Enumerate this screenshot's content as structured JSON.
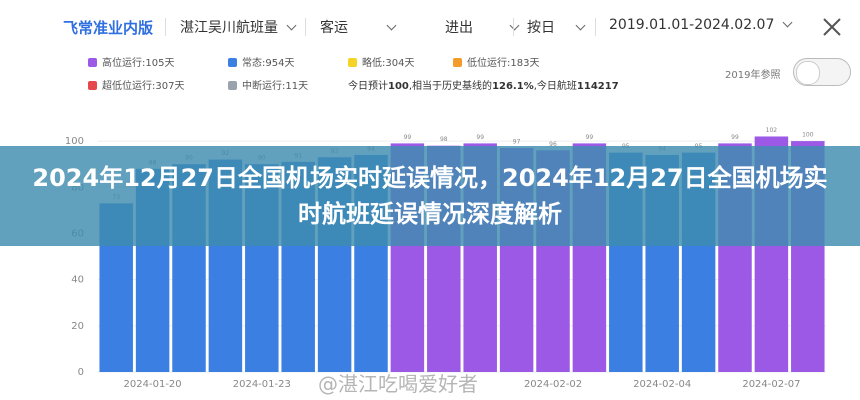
{
  "header": {
    "title": "飞常准业内版",
    "filters": [
      "湛江吴川航班量",
      "客运",
      "进出",
      "按日",
      "2019.01.01-2024.02.07"
    ]
  },
  "legend": [
    {
      "label": "高位运行:105天",
      "color": "#9b59e6"
    },
    {
      "label": "常态:954天",
      "color": "#3b7fe3"
    },
    {
      "label": "略低:304天",
      "color": "#f5d327"
    },
    {
      "label": "低位运行:183天",
      "color": "#f39b2b"
    },
    {
      "label": "超低位运行:307天",
      "color": "#e5484d"
    },
    {
      "label": "中断运行:11天",
      "color": "#9aa3ad"
    }
  ],
  "summary": {
    "prefix": "今日预计",
    "expected": "100",
    "middle": ",相当于历史基线的",
    "ratio": "126.1%",
    "suffix": ",今日航班",
    "flights": "114217"
  },
  "toggle": "2019年参照",
  "chart_data": {
    "type": "bar",
    "categories": [
      null,
      "2024-01-20",
      null,
      null,
      "2024-01-23",
      null,
      null,
      null,
      null,
      null,
      null,
      null,
      "2024-02-02",
      null,
      null,
      "2024-02-04",
      null,
      null,
      "2024-02-07",
      null
    ],
    "values": [
      73,
      88,
      90,
      92,
      90,
      91,
      93,
      94,
      99,
      98,
      99,
      97,
      96,
      99,
      95,
      94,
      95,
      99,
      102,
      100
    ],
    "colors": [
      "#3b7fe3",
      "#3b7fe3",
      "#3b7fe3",
      "#3b7fe3",
      "#3b7fe3",
      "#3b7fe3",
      "#3b7fe3",
      "#3b7fe3",
      "#9b59e6",
      "#9b59e6",
      "#9b59e6",
      "#9b59e6",
      "#9b59e6",
      "#9b59e6",
      "#3b7fe3",
      "#3b7fe3",
      "#3b7fe3",
      "#9b59e6",
      "#9b59e6",
      "#9b59e6"
    ],
    "ylim": [
      0,
      110
    ],
    "yticks": [
      0,
      20,
      40,
      60,
      80,
      100
    ],
    "grid": true
  },
  "banner": "2024年12月27日全国机场实时延误情况，2024年12月27日全国机场实时航班延误情况深度解析",
  "watermark": "@湛江吃喝爱好者"
}
